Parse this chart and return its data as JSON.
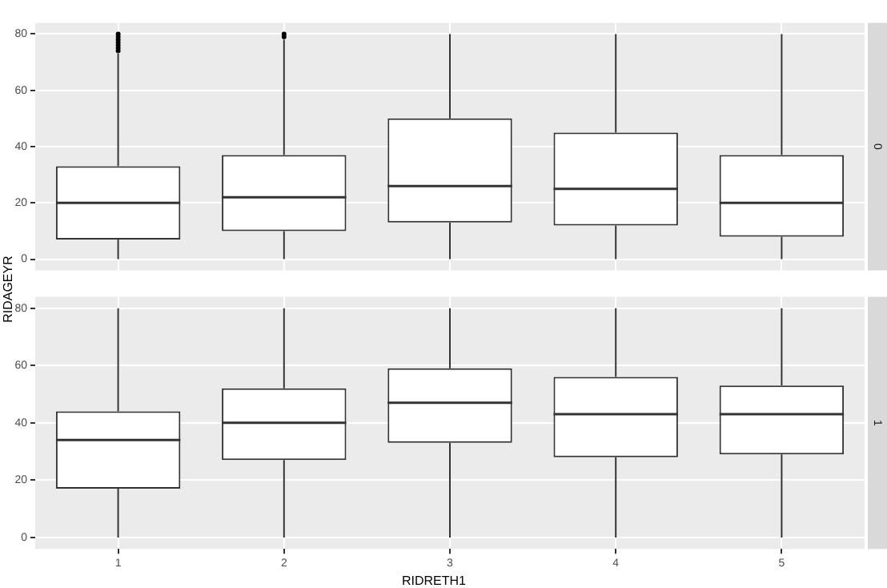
{
  "chart_data": [
    {
      "type": "box",
      "annotations": [
        "0"
      ],
      "ylabel": "RIDAGEYR",
      "categories": [
        "1",
        "2",
        "3",
        "4",
        "5"
      ],
      "ylim": [
        -4,
        84
      ],
      "yticks": [
        0,
        20,
        40,
        60,
        80
      ],
      "grid": true,
      "tick_labels": "y",
      "boxes": [
        {
          "low": 0,
          "q1": 7,
          "median": 20,
          "q3": 33,
          "high": 73,
          "outliers": [
            74,
            75,
            76,
            77,
            78,
            79,
            80
          ]
        },
        {
          "low": 0,
          "q1": 10,
          "median": 22,
          "q3": 37,
          "high": 78,
          "outliers": [
            79,
            80
          ]
        },
        {
          "low": 0,
          "q1": 13,
          "median": 26,
          "q3": 50,
          "high": 80
        },
        {
          "low": 0,
          "q1": 12,
          "median": 25,
          "q3": 45,
          "high": 80
        },
        {
          "low": 0,
          "q1": 8,
          "median": 20,
          "q3": 37,
          "high": 80
        }
      ]
    },
    {
      "type": "box",
      "annotations": [
        "1"
      ],
      "xlabel": "RIDRETH1",
      "categories": [
        "1",
        "2",
        "3",
        "4",
        "5"
      ],
      "ylim": [
        -4,
        84
      ],
      "yticks": [
        0,
        20,
        40,
        60,
        80
      ],
      "grid": true,
      "boxes": [
        {
          "low": 0,
          "q1": 17,
          "median": 34,
          "q3": 44,
          "high": 80
        },
        {
          "low": 0,
          "q1": 27,
          "median": 40,
          "q3": 52,
          "high": 80
        },
        {
          "low": 0,
          "q1": 33,
          "median": 47,
          "q3": 59,
          "high": 80
        },
        {
          "low": 0,
          "q1": 28,
          "median": 43,
          "q3": 56,
          "high": 80
        },
        {
          "low": 0,
          "q1": 29,
          "median": 43,
          "q3": 53,
          "high": 80
        }
      ]
    }
  ]
}
